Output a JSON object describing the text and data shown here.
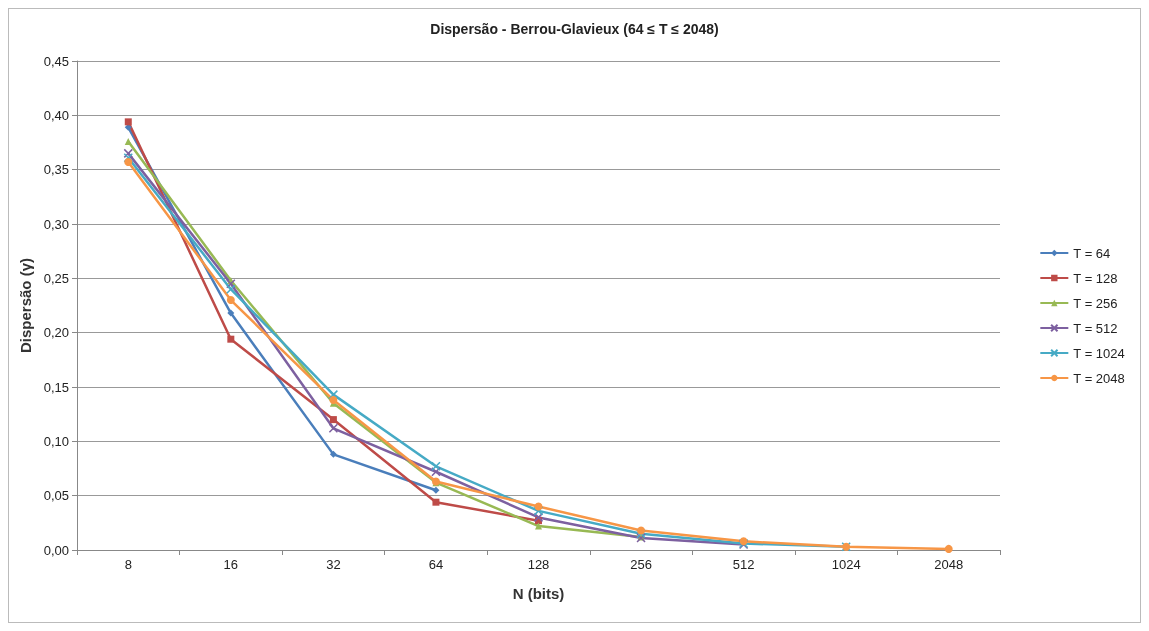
{
  "chart_data": {
    "type": "line",
    "title": "Dispersão - Berrou-Glavieux (64 ≤ T ≤ 2048)",
    "xlabel": "N (bits)",
    "ylabel": "Dispersão (γ)",
    "categories": [
      "8",
      "16",
      "32",
      "64",
      "128",
      "256",
      "512",
      "1024",
      "2048"
    ],
    "ylim": [
      0,
      0.45
    ],
    "yticks": [
      {
        "value": 0,
        "label": "0,00"
      },
      {
        "value": 0.05,
        "label": "0,05"
      },
      {
        "value": 0.1,
        "label": "0,10"
      },
      {
        "value": 0.15,
        "label": "0,15"
      },
      {
        "value": 0.2,
        "label": "0,20"
      },
      {
        "value": 0.25,
        "label": "0,25"
      },
      {
        "value": 0.3,
        "label": "0,30"
      },
      {
        "value": 0.35,
        "label": "0,35"
      },
      {
        "value": 0.4,
        "label": "0,40"
      },
      {
        "value": 0.45,
        "label": "0,45"
      }
    ],
    "grid": "y",
    "legend": "right",
    "series": [
      {
        "name": "T = 64",
        "color": "#4a7ebb",
        "marker": "diamond",
        "values": [
          0.389,
          0.218,
          0.088,
          0.055,
          null,
          null,
          null,
          null,
          null
        ]
      },
      {
        "name": "T = 128",
        "color": "#be4b48",
        "marker": "square",
        "values": [
          0.394,
          0.194,
          0.12,
          0.044,
          0.027,
          null,
          null,
          null,
          null
        ]
      },
      {
        "name": "T = 256",
        "color": "#98b954",
        "marker": "triangle",
        "values": [
          0.376,
          0.248,
          0.135,
          0.062,
          0.022,
          0.012,
          null,
          null,
          null
        ]
      },
      {
        "name": "T = 512",
        "color": "#7d60a0",
        "marker": "cross",
        "values": [
          0.365,
          0.245,
          0.112,
          0.072,
          0.03,
          0.011,
          0.005,
          null,
          null
        ]
      },
      {
        "name": "T = 1024",
        "color": "#46aac5",
        "marker": "cross",
        "values": [
          0.361,
          0.24,
          0.143,
          0.077,
          0.036,
          0.015,
          0.006,
          0.003,
          null
        ]
      },
      {
        "name": "T = 2048",
        "color": "#f79646",
        "marker": "circle",
        "values": [
          0.357,
          0.23,
          0.138,
          0.063,
          0.04,
          0.018,
          0.008,
          0.003,
          0.001
        ]
      }
    ]
  }
}
